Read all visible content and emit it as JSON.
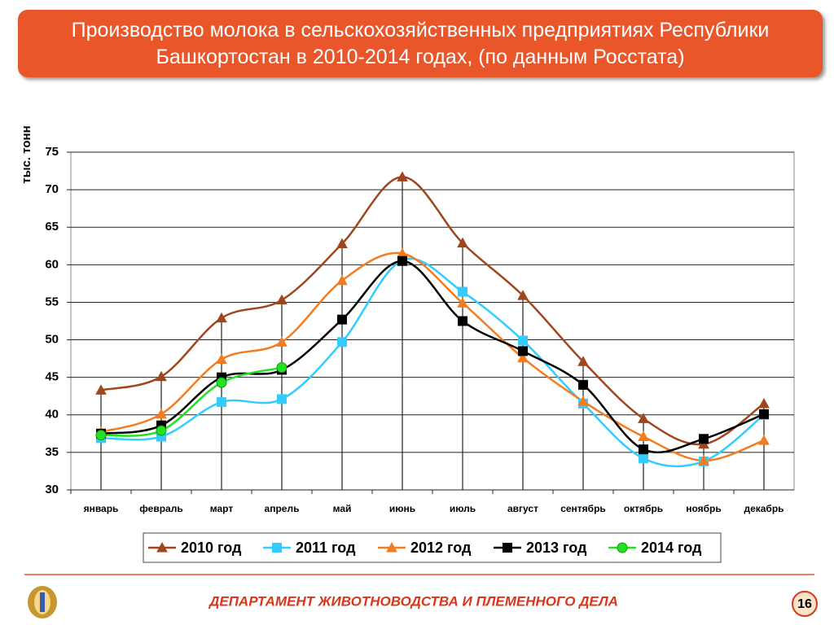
{
  "chart_data": {
    "type": "line",
    "title": "Производство молока в сельскохозяйственных предприятиях Республики Башкортостан в 2010-2014 годах, (по данным Росстата)",
    "y_label": "тыс. тонн",
    "categories": [
      "январь",
      "февраль",
      "март",
      "апрель",
      "май",
      "июнь",
      "июль",
      "август",
      "сентябрь",
      "октябрь",
      "ноябрь",
      "декабрь"
    ],
    "series": [
      {
        "name": "2010 год",
        "color": "#a0461e",
        "marker": "triangle",
        "values": [
          43.3,
          45.1,
          52.9,
          55.3,
          62.8,
          71.7,
          62.9,
          55.9,
          47.1,
          39.5,
          36.1,
          41.5
        ]
      },
      {
        "name": "2011 год",
        "color": "#33ccff",
        "marker": "square",
        "values": [
          36.9,
          37.1,
          41.7,
          42.1,
          49.7,
          60.6,
          56.4,
          49.9,
          41.5,
          34.2,
          33.8,
          40.0
        ]
      },
      {
        "name": "2012 год",
        "color": "#f47c20",
        "marker": "triangle",
        "values": [
          37.7,
          40.1,
          47.4,
          49.7,
          57.9,
          61.5,
          54.9,
          47.6,
          41.8,
          37.1,
          33.9,
          36.6
        ]
      },
      {
        "name": "2013 год",
        "color": "#000000",
        "marker": "square",
        "values": [
          37.5,
          38.6,
          45.0,
          46.0,
          52.7,
          60.5,
          52.5,
          48.5,
          44.0,
          35.4,
          36.8,
          40.1
        ]
      },
      {
        "name": "2014 год",
        "color": "#22e022",
        "marker": "circle",
        "values": [
          37.3,
          37.9,
          44.3,
          46.3,
          null,
          null,
          null,
          null,
          null,
          null,
          null,
          null
        ]
      }
    ],
    "ylim": [
      30,
      75
    ],
    "yticks": [
      30,
      35,
      40,
      45,
      50,
      55,
      60,
      65,
      70,
      75
    ],
    "grid": true,
    "legend": "bottom"
  },
  "footer": {
    "text": "ДЕПАРТАМЕНТ ЖИВОТНОВОДСТВА И ПЛЕМЕННОГО ДЕЛА",
    "page": "16"
  }
}
